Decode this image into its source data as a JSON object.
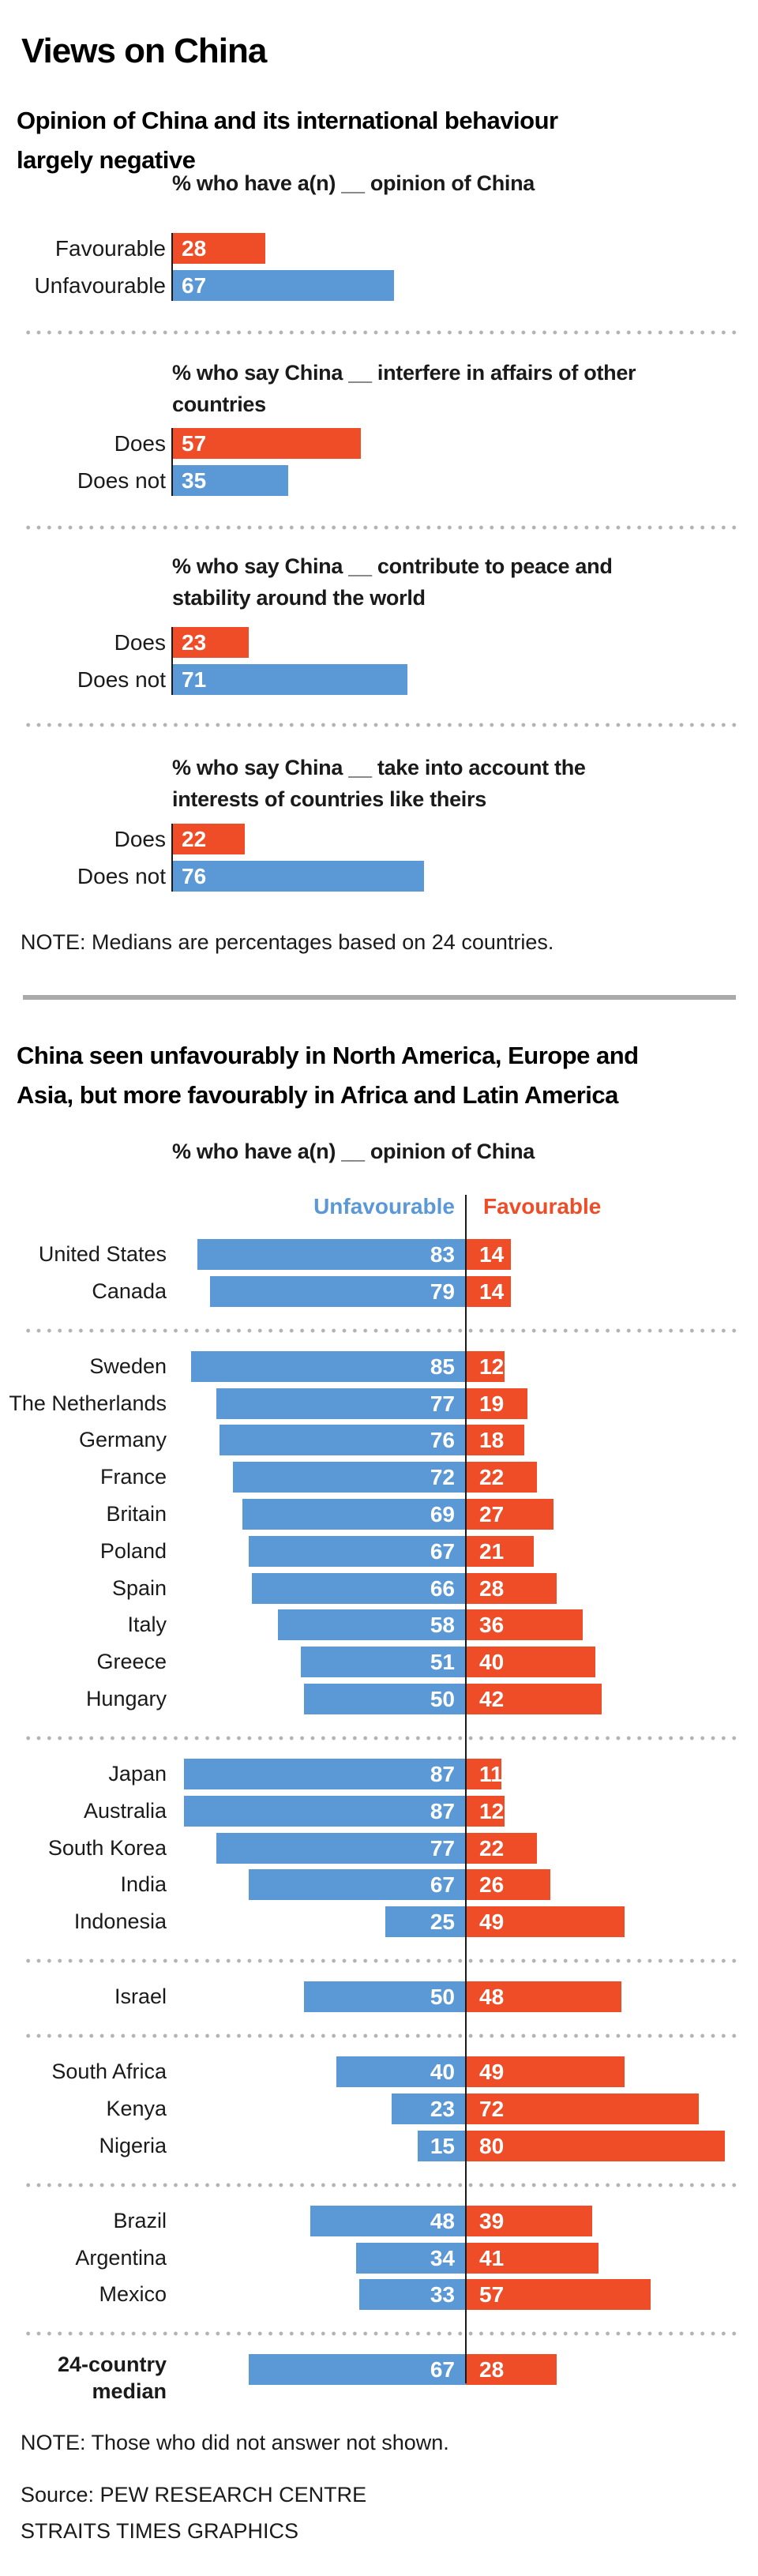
{
  "title": "Views on China",
  "colors": {
    "unfavourable": "#5b98d6",
    "favourable": "#ee4d27"
  },
  "section1": {
    "title_lines": [
      "Opinion of China and its international behaviour",
      "largely negative"
    ],
    "note": "NOTE: Medians are percentages based on 24 countries."
  },
  "section2": {
    "title_lines": [
      "China seen unfavourably in North America, Europe and",
      "Asia, but more favourably in Africa and Latin America"
    ],
    "subtitle": "% who have a(n) __ opinion of China",
    "legend": {
      "unfavourable": "Unfavourable",
      "favourable": "Favourable"
    },
    "note": "NOTE: Those who did not answer not shown.",
    "source": "Source: PEW RESEARCH CENTRE",
    "credit": "STRAITS TIMES GRAPHICS"
  },
  "chart_data": [
    {
      "type": "bar",
      "title": "% who have a(n) __ opinion of China",
      "title_lines": [
        "% who have a(n) __ opinion of China"
      ],
      "categories": [
        "Favourable",
        "Unfavourable"
      ],
      "values": [
        28,
        67
      ],
      "series_colors": [
        "favourable",
        "unfavourable"
      ],
      "xlim": [
        0,
        100
      ]
    },
    {
      "type": "bar",
      "title": "% who say China __ interfere in affairs of other countries",
      "title_lines": [
        "% who say China __ interfere in affairs of other",
        "countries"
      ],
      "categories": [
        "Does",
        "Does not"
      ],
      "values": [
        57,
        35
      ],
      "series_colors": [
        "favourable",
        "unfavourable"
      ],
      "xlim": [
        0,
        100
      ]
    },
    {
      "type": "bar",
      "title": "% who say China __ contribute to peace and stability around the world",
      "title_lines": [
        "% who say China __ contribute to peace and",
        "stability around the world"
      ],
      "categories": [
        "Does",
        "Does not"
      ],
      "values": [
        23,
        71
      ],
      "series_colors": [
        "favourable",
        "unfavourable"
      ],
      "xlim": [
        0,
        100
      ]
    },
    {
      "type": "bar",
      "title": "% who say China __ take into account the interests of countries like theirs",
      "title_lines": [
        "% who say China __ take into account the",
        "interests of countries like theirs"
      ],
      "categories": [
        "Does",
        "Does not"
      ],
      "values": [
        22,
        76
      ],
      "series_colors": [
        "favourable",
        "unfavourable"
      ],
      "xlim": [
        0,
        100
      ]
    },
    {
      "type": "bar",
      "orientation": "diverging",
      "title": "% who have a(n) __ opinion of China",
      "legend": [
        "Unfavourable",
        "Favourable"
      ],
      "groups": [
        {
          "rows": [
            {
              "country": "United States",
              "unfavourable": 83,
              "favourable": 14
            },
            {
              "country": "Canada",
              "unfavourable": 79,
              "favourable": 14
            }
          ]
        },
        {
          "rows": [
            {
              "country": "Sweden",
              "unfavourable": 85,
              "favourable": 12
            },
            {
              "country": "The Netherlands",
              "unfavourable": 77,
              "favourable": 19
            },
            {
              "country": "Germany",
              "unfavourable": 76,
              "favourable": 18
            },
            {
              "country": "France",
              "unfavourable": 72,
              "favourable": 22
            },
            {
              "country": "Britain",
              "unfavourable": 69,
              "favourable": 27
            },
            {
              "country": "Poland",
              "unfavourable": 67,
              "favourable": 21
            },
            {
              "country": "Spain",
              "unfavourable": 66,
              "favourable": 28
            },
            {
              "country": "Italy",
              "unfavourable": 58,
              "favourable": 36
            },
            {
              "country": "Greece",
              "unfavourable": 51,
              "favourable": 40
            },
            {
              "country": "Hungary",
              "unfavourable": 50,
              "favourable": 42
            }
          ]
        },
        {
          "rows": [
            {
              "country": "Japan",
              "unfavourable": 87,
              "favourable": 11
            },
            {
              "country": "Australia",
              "unfavourable": 87,
              "favourable": 12
            },
            {
              "country": "South Korea",
              "unfavourable": 77,
              "favourable": 22
            },
            {
              "country": "India",
              "unfavourable": 67,
              "favourable": 26
            },
            {
              "country": "Indonesia",
              "unfavourable": 25,
              "favourable": 49
            }
          ]
        },
        {
          "rows": [
            {
              "country": "Israel",
              "unfavourable": 50,
              "favourable": 48
            }
          ]
        },
        {
          "rows": [
            {
              "country": "South Africa",
              "unfavourable": 40,
              "favourable": 49
            },
            {
              "country": "Kenya",
              "unfavourable": 23,
              "favourable": 72
            },
            {
              "country": "Nigeria",
              "unfavourable": 15,
              "favourable": 80
            }
          ]
        },
        {
          "rows": [
            {
              "country": "Brazil",
              "unfavourable": 48,
              "favourable": 39
            },
            {
              "country": "Argentina",
              "unfavourable": 34,
              "favourable": 41
            },
            {
              "country": "Mexico",
              "unfavourable": 33,
              "favourable": 57
            }
          ]
        },
        {
          "rows": [
            {
              "country": "24-country median",
              "label_lines": [
                "24-country",
                "median"
              ],
              "unfavourable": 67,
              "favourable": 28,
              "bold": true
            }
          ]
        }
      ],
      "xlim": [
        -100,
        100
      ]
    }
  ]
}
